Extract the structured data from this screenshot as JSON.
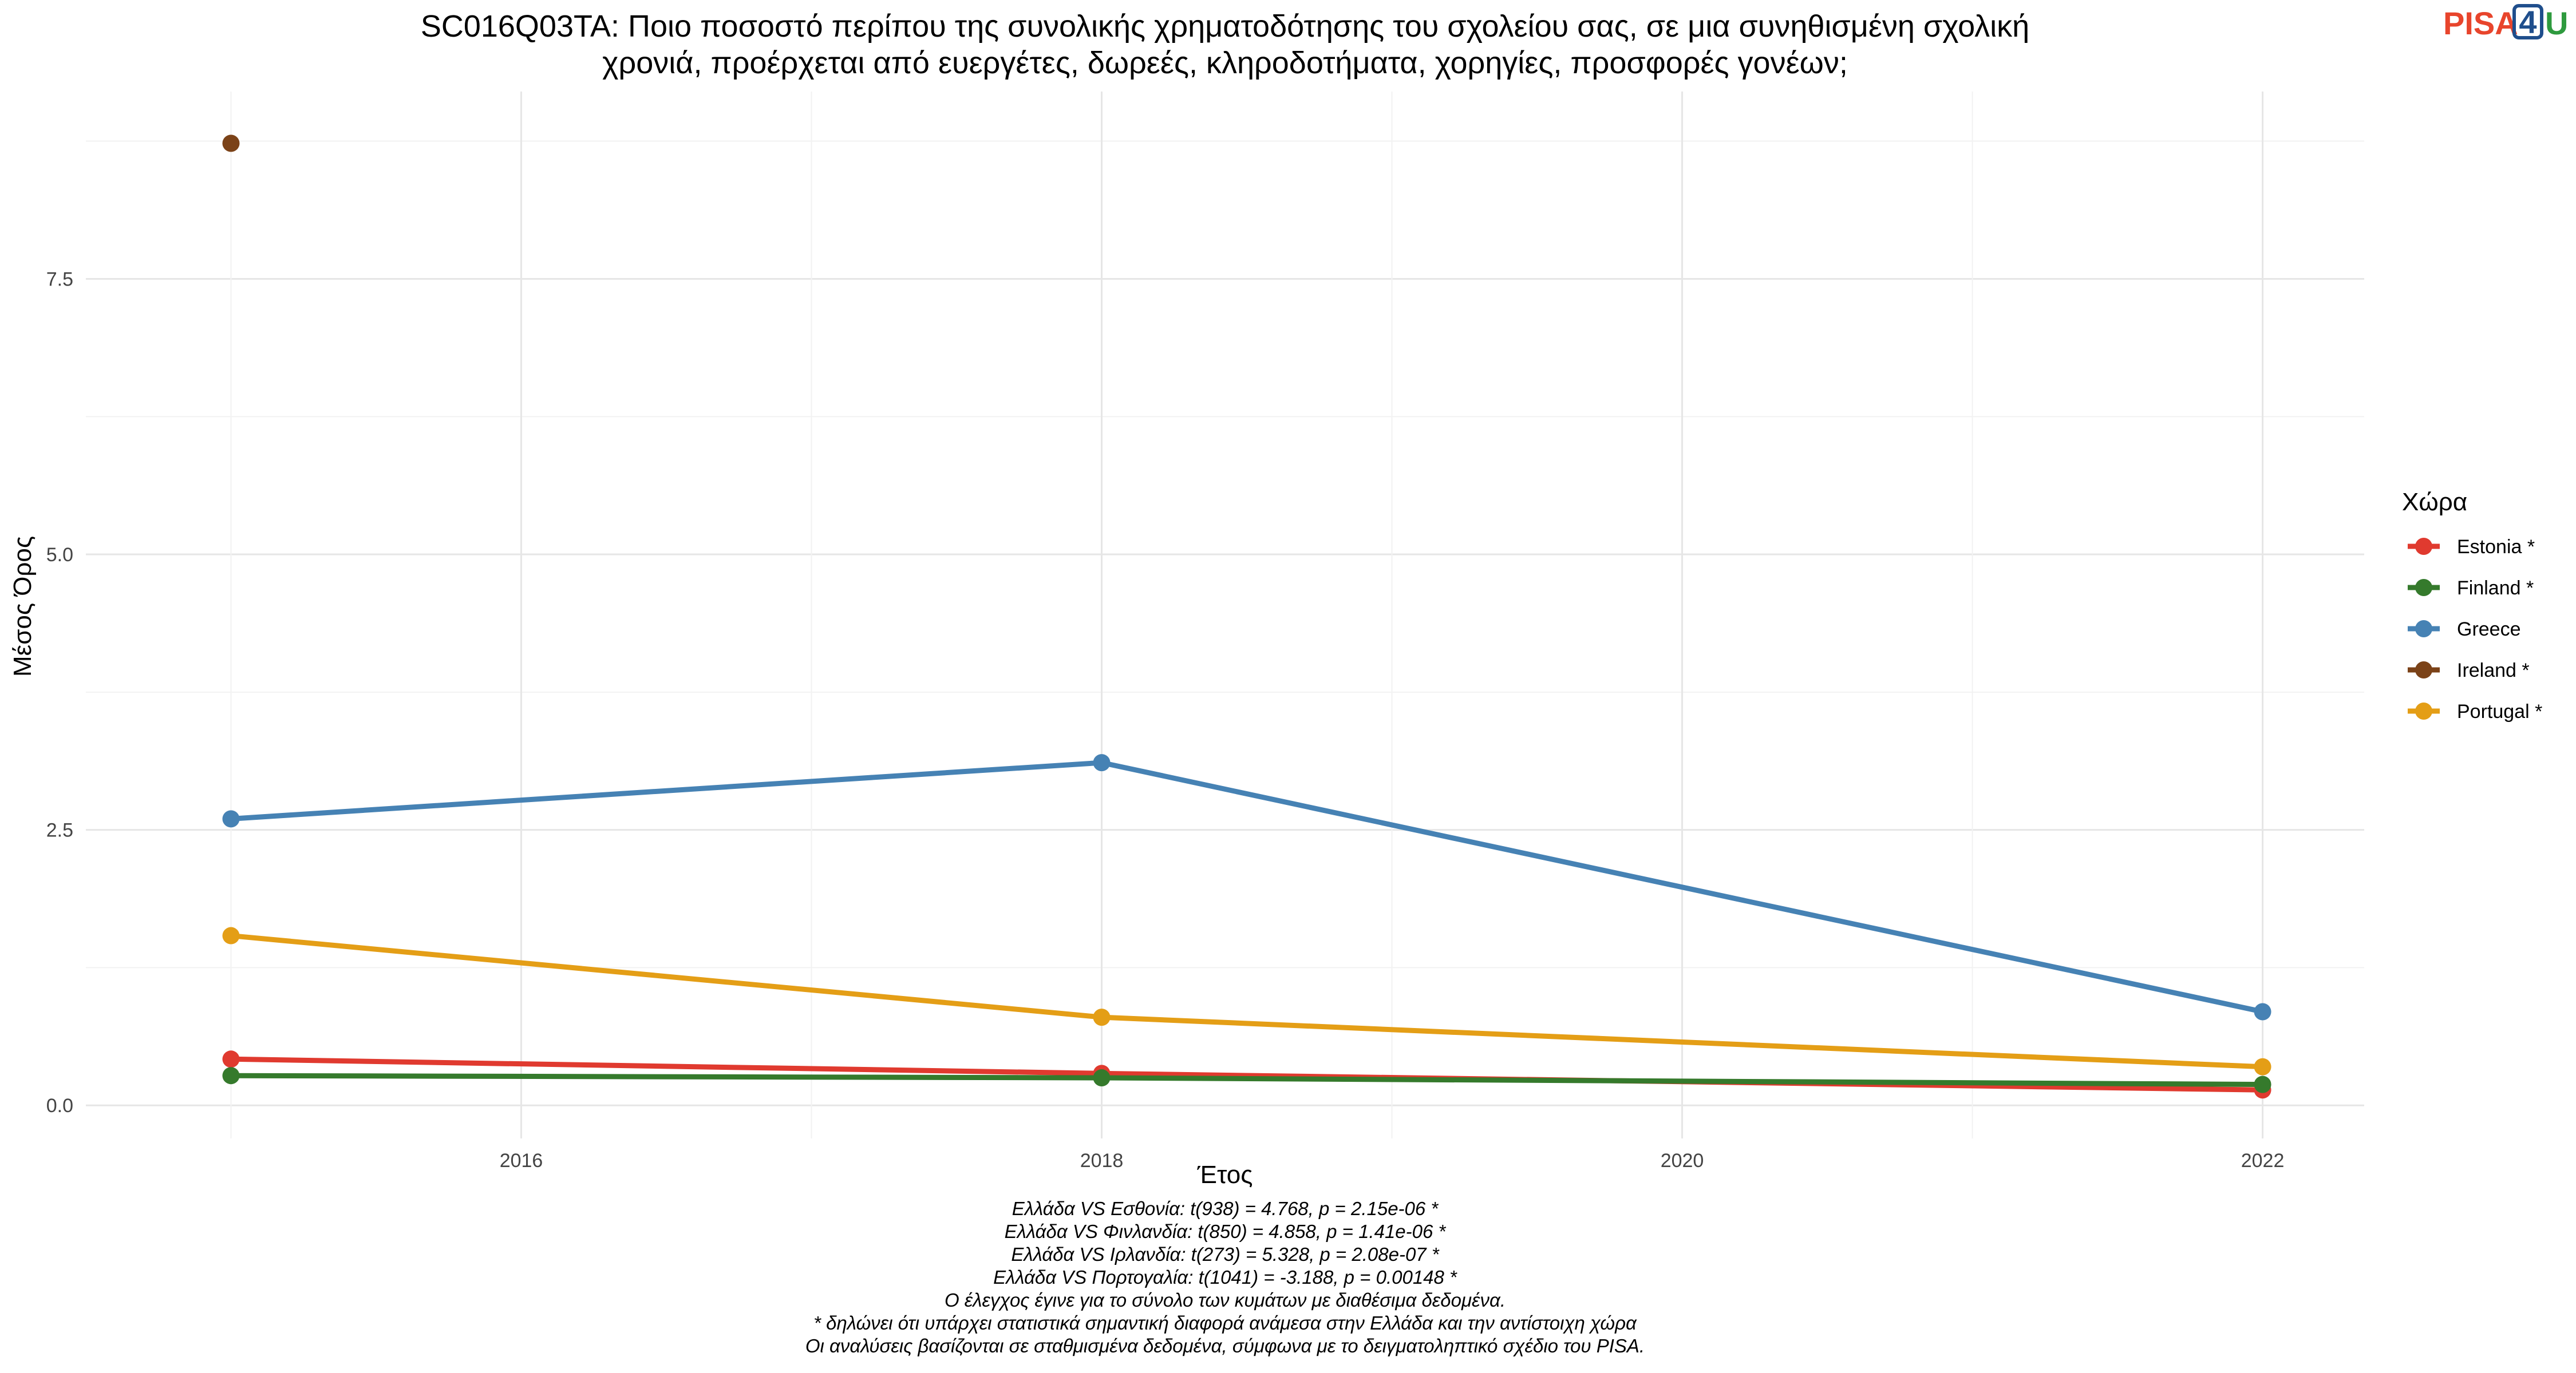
{
  "title_lines": [
    "SC016Q03TA: Ποιο ποσοστό περίπου της συνολικής χρηματοδότησης του σχολείου σας, σε μια συνηθισμένη σχολική",
    "χρονιά, προέρχεται από ευεργέτες, δωρεές, κληροδοτήματα, χορηγίες, προσφορές γονέων;"
  ],
  "logo": {
    "text_a": "PISA",
    "text_b": "4",
    "text_c": "U",
    "color_a": "#e8452c",
    "color_b": "#1f4e8c",
    "color_c": "#2e9a3e"
  },
  "chart_data": {
    "type": "line",
    "xlabel": "Έτος",
    "ylabel": "Μέσος Όρος",
    "xlim": [
      2014.5,
      2022.35
    ],
    "ylim": [
      -0.3,
      9.2
    ],
    "x_ticks": [
      2016,
      2018,
      2020,
      2022
    ],
    "y_ticks": [
      0.0,
      2.5,
      5.0,
      7.5
    ],
    "y_tick_labels": [
      "0.0",
      "2.5",
      "5.0",
      "7.5"
    ],
    "x_tick_labels": [
      "2016",
      "2018",
      "2020",
      "2022"
    ],
    "grid": true,
    "legend_title": "Χώρα",
    "legend_position": "right",
    "series": [
      {
        "name": "Estonia *",
        "color": "#e03a2f",
        "x": [
          2015,
          2018,
          2022
        ],
        "y": [
          0.42,
          0.29,
          0.14
        ]
      },
      {
        "name": "Finland *",
        "color": "#357a2c",
        "x": [
          2015,
          2018,
          2022
        ],
        "y": [
          0.27,
          0.25,
          0.19
        ]
      },
      {
        "name": "Greece",
        "color": "#4682b4",
        "x": [
          2015,
          2018,
          2022
        ],
        "y": [
          2.6,
          3.11,
          0.85
        ]
      },
      {
        "name": "Ireland *",
        "color": "#7b4218",
        "x": [
          2015
        ],
        "y": [
          8.73
        ]
      },
      {
        "name": "Portugal *",
        "color": "#e49e16",
        "x": [
          2015,
          2018,
          2022
        ],
        "y": [
          1.54,
          0.8,
          0.35
        ]
      }
    ]
  },
  "caption_lines": [
    "Ελλάδα VS Εσθονία: t(938) = 4.768, p = 2.15e-06 *",
    "Ελλάδα VS Φινλανδία: t(850) = 4.858, p = 1.41e-06 *",
    "Ελλάδα VS Ιρλανδία: t(273) = 5.328, p = 2.08e-07 *",
    "Ελλάδα VS Πορτογαλία: t(1041) = -3.188, p = 0.00148 *",
    "Ο έλεγχος έγινε για το σύνολο των κυμάτων με διαθέσιμα δεδομένα.",
    "* δηλώνει ότι υπάρχει στατιστικά σημαντική διαφορά ανάμεσα στην Ελλάδα και την αντίστοιχη χώρα",
    "Οι αναλύσεις βασίζονται σε σταθμισμένα δεδομένα, σύμφωνα με το δειγματοληπτικό σχέδιο του PISA."
  ]
}
